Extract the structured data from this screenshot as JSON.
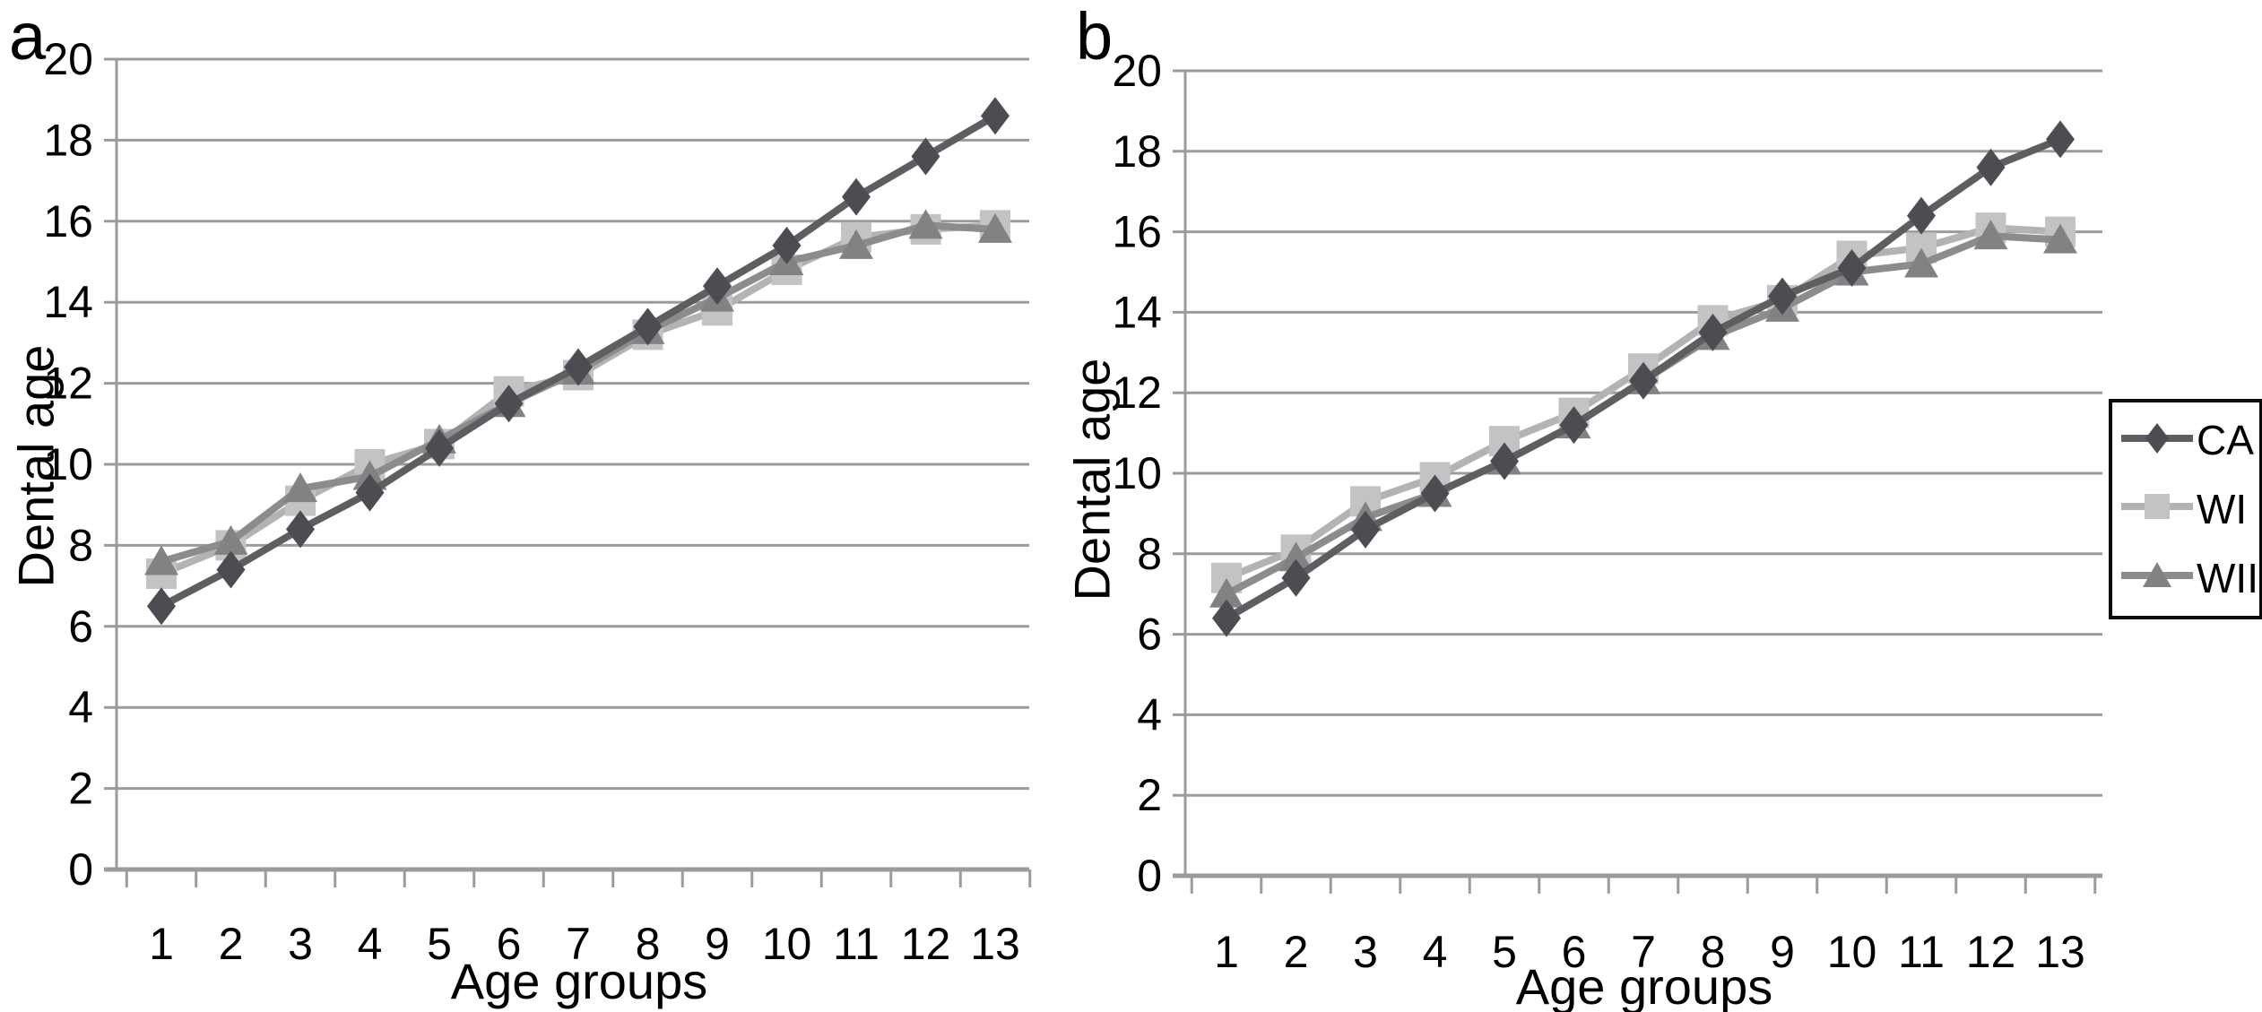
{
  "figure": {
    "background": "#ffffff",
    "grid_color": "#9b9b9b",
    "axis_color": "#9b9b9b",
    "series_styles": {
      "CA": {
        "marker": "diamond",
        "line_color": "#5e5e62",
        "marker_color": "#4c4c52"
      },
      "WI": {
        "marker": "square",
        "line_color": "#b3b3b3",
        "marker_color": "#c3c3c3"
      },
      "WII": {
        "marker": "triangle",
        "line_color": "#8c8c8c",
        "marker_color": "#828282"
      }
    },
    "legend": {
      "items": [
        {
          "label": "CA",
          "marker": "diamond"
        },
        {
          "label": "WI",
          "marker": "square"
        },
        {
          "label": "WII",
          "marker": "triangle"
        }
      ]
    }
  },
  "chart_data": [
    {
      "type": "line",
      "panel_label": "a",
      "xlabel": "Age groups",
      "ylabel": "Dental age",
      "ylim": [
        0,
        20
      ],
      "ytick_step": 2,
      "grid": true,
      "legend_position": "none",
      "yticks": [
        "20",
        "18",
        "16",
        "14",
        "12",
        "10",
        "8",
        "6",
        "4",
        "2",
        "0"
      ],
      "categories": [
        "1",
        "2",
        "3",
        "4",
        "5",
        "6",
        "7",
        "8",
        "9",
        "10",
        "11",
        "12",
        "13"
      ],
      "series": [
        {
          "name": "CA",
          "marker": "diamond",
          "values": [
            6.5,
            7.4,
            8.4,
            9.3,
            10.4,
            11.5,
            12.4,
            13.4,
            14.4,
            15.4,
            16.6,
            17.6,
            18.6
          ]
        },
        {
          "name": "WI",
          "marker": "square",
          "values": [
            7.3,
            8.0,
            9.1,
            10.0,
            10.5,
            11.8,
            12.2,
            13.2,
            13.8,
            14.8,
            15.6,
            15.8,
            15.9
          ]
        },
        {
          "name": "WII",
          "marker": "triangle",
          "values": [
            7.6,
            8.1,
            9.4,
            9.7,
            10.6,
            11.5,
            12.3,
            13.3,
            14.1,
            15.0,
            15.4,
            15.9,
            15.8
          ]
        }
      ]
    },
    {
      "type": "line",
      "panel_label": "b",
      "xlabel": "Age groups",
      "ylabel": "Dental age",
      "ylim": [
        0,
        20
      ],
      "ytick_step": 2,
      "grid": true,
      "legend_position": "right",
      "yticks": [
        "20",
        "18",
        "16",
        "14",
        "12",
        "10",
        "8",
        "6",
        "4",
        "2",
        "0"
      ],
      "categories": [
        "1",
        "2",
        "3",
        "4",
        "5",
        "6",
        "7",
        "8",
        "9",
        "10",
        "11",
        "12",
        "13"
      ],
      "series": [
        {
          "name": "CA",
          "marker": "diamond",
          "values": [
            6.4,
            7.4,
            8.6,
            9.5,
            10.3,
            11.2,
            12.3,
            13.5,
            14.4,
            15.1,
            16.4,
            17.6,
            18.3
          ]
        },
        {
          "name": "WI",
          "marker": "square",
          "values": [
            7.4,
            8.1,
            9.3,
            9.9,
            10.8,
            11.5,
            12.6,
            13.8,
            14.3,
            15.4,
            15.6,
            16.1,
            16.0
          ]
        },
        {
          "name": "WII",
          "marker": "triangle",
          "values": [
            7.0,
            7.9,
            8.9,
            9.5,
            10.3,
            11.2,
            12.3,
            13.4,
            14.1,
            15.0,
            15.2,
            15.9,
            15.8
          ]
        }
      ]
    }
  ]
}
